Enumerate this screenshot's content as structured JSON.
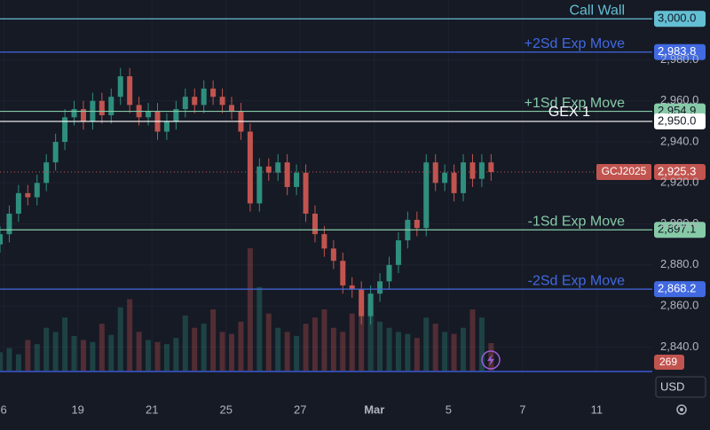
{
  "chart_data": {
    "type": "candlestick",
    "symbol": "GCJ2025",
    "x": [
      -0.1,
      0.15,
      0.4,
      0.65,
      0.9,
      1.15,
      1.4,
      1.65,
      1.9,
      2.15,
      2.4,
      2.65,
      2.9,
      3.15,
      3.4,
      3.65,
      3.9,
      4.15,
      4.4,
      4.65,
      4.9,
      5.15,
      5.4,
      5.65,
      5.9,
      6.15,
      6.4,
      6.65,
      6.9,
      7.15,
      7.4,
      7.65,
      7.9,
      8.15,
      8.4,
      8.65,
      8.9,
      9.15,
      9.4,
      9.65,
      9.9,
      10.15,
      10.4,
      10.65,
      10.9,
      11.15,
      11.4,
      11.65,
      11.9,
      12.15,
      12.4,
      12.65,
      12.9,
      13.15
    ],
    "open": [
      2890,
      2895,
      2905,
      2915,
      2913,
      2920,
      2930,
      2940,
      2952,
      2956,
      2950,
      2960,
      2953,
      2962,
      2972,
      2958,
      2952,
      2955,
      2945,
      2950,
      2956,
      2962,
      2958,
      2966,
      2962,
      2958,
      2955,
      2945,
      2910,
      2928,
      2925,
      2930,
      2918,
      2925,
      2905,
      2895,
      2888,
      2882,
      2870,
      2868,
      2855,
      2866,
      2872,
      2880,
      2892,
      2902,
      2898,
      2930,
      2920,
      2925,
      2915,
      2930,
      2922,
      2930
    ],
    "high": [
      2899,
      2909,
      2919,
      2919,
      2924,
      2934,
      2944,
      2956,
      2960,
      2960,
      2964,
      2964,
      2966,
      2976,
      2976,
      2962,
      2959,
      2959,
      2954,
      2960,
      2966,
      2966,
      2970,
      2970,
      2966,
      2962,
      2959,
      2949,
      2932,
      2932,
      2934,
      2934,
      2929,
      2929,
      2909,
      2899,
      2892,
      2886,
      2874,
      2872,
      2870,
      2876,
      2884,
      2896,
      2906,
      2906,
      2934,
      2934,
      2929,
      2929,
      2934,
      2934,
      2934,
      2934
    ],
    "low": [
      2886,
      2891,
      2901,
      2909,
      2909,
      2916,
      2926,
      2936,
      2948,
      2946,
      2946,
      2949,
      2949,
      2958,
      2954,
      2948,
      2948,
      2941,
      2941,
      2946,
      2952,
      2954,
      2954,
      2958,
      2954,
      2951,
      2941,
      2906,
      2906,
      2921,
      2921,
      2914,
      2914,
      2901,
      2891,
      2884,
      2878,
      2866,
      2864,
      2851,
      2851,
      2862,
      2868,
      2876,
      2888,
      2894,
      2894,
      2916,
      2916,
      2911,
      2911,
      2918,
      2918,
      2921
    ],
    "close": [
      2895,
      2905,
      2915,
      2913,
      2920,
      2930,
      2940,
      2952,
      2956,
      2950,
      2960,
      2953,
      2962,
      2972,
      2958,
      2952,
      2955,
      2945,
      2950,
      2956,
      2962,
      2958,
      2966,
      2962,
      2958,
      2955,
      2945,
      2910,
      2928,
      2925,
      2930,
      2918,
      2925,
      2905,
      2895,
      2888,
      2882,
      2870,
      2868,
      2855,
      2866,
      2872,
      2880,
      2892,
      2902,
      2898,
      2930,
      2920,
      2925,
      2915,
      2930,
      2922,
      2930,
      2925.3
    ],
    "volume": [
      180,
      220,
      160,
      300,
      260,
      420,
      380,
      520,
      340,
      300,
      280,
      460,
      350,
      620,
      700,
      380,
      300,
      280,
      260,
      320,
      540,
      420,
      460,
      600,
      380,
      360,
      480,
      1200,
      820,
      560,
      420,
      380,
      340,
      460,
      520,
      600,
      420,
      380,
      560,
      700,
      640,
      480,
      420,
      380,
      360,
      320,
      520,
      460,
      380,
      360,
      420,
      600,
      520,
      269
    ],
    "volume_label": "269",
    "up_color": "#2f8f7e",
    "down_color": "#c2544f",
    "ylim": [
      2827.6,
      3009.2
    ],
    "yticks": [
      {
        "value": 2840,
        "label": "2,840.0"
      },
      {
        "value": 2860,
        "label": "2,860.0"
      },
      {
        "value": 2880,
        "label": "2,880.0"
      },
      {
        "value": 2900,
        "label": "2,900.0"
      },
      {
        "value": 2920,
        "label": "2,920.0"
      },
      {
        "value": 2940,
        "label": "2,940.0"
      },
      {
        "value": 2960,
        "label": "2,960.0"
      },
      {
        "value": 2980,
        "label": "2,980.0"
      }
    ],
    "xlim": [
      -0.1,
      17.5
    ],
    "xticks": [
      {
        "value": 0,
        "label": "6"
      },
      {
        "value": 2,
        "label": "19"
      },
      {
        "value": 4,
        "label": "21"
      },
      {
        "value": 6,
        "label": "25"
      },
      {
        "value": 8,
        "label": "27"
      },
      {
        "value": 10,
        "label": "Mar"
      },
      {
        "value": 12,
        "label": "5"
      },
      {
        "value": 14,
        "label": "7"
      },
      {
        "value": 16,
        "label": "11"
      }
    ],
    "last_price_label": "2,925.3",
    "levels": [
      {
        "name": "Call Wall",
        "value": 3000,
        "value_label": "3,000.0",
        "color": "#63bfd3"
      },
      {
        "name": "+2Sd Exp Move",
        "value": 2983.8,
        "value_label": "2,983.8",
        "color": "#4169e1"
      },
      {
        "name": "+1Sd Exp Move",
        "value": 2954.9,
        "value_label": "2,954.9",
        "color": "#86caa7"
      },
      {
        "name": "GEX 1",
        "value": 2950,
        "value_label": "2,950.0",
        "color": "#ffffff"
      },
      {
        "name": "-1Sd Exp Move",
        "value": 2897.1,
        "value_label": "2,897.1",
        "color": "#86caa7"
      },
      {
        "name": "-2Sd Exp Move",
        "value": 2868.2,
        "value_label": "2,868.2",
        "color": "#4169e1"
      }
    ],
    "currency": "USD"
  }
}
